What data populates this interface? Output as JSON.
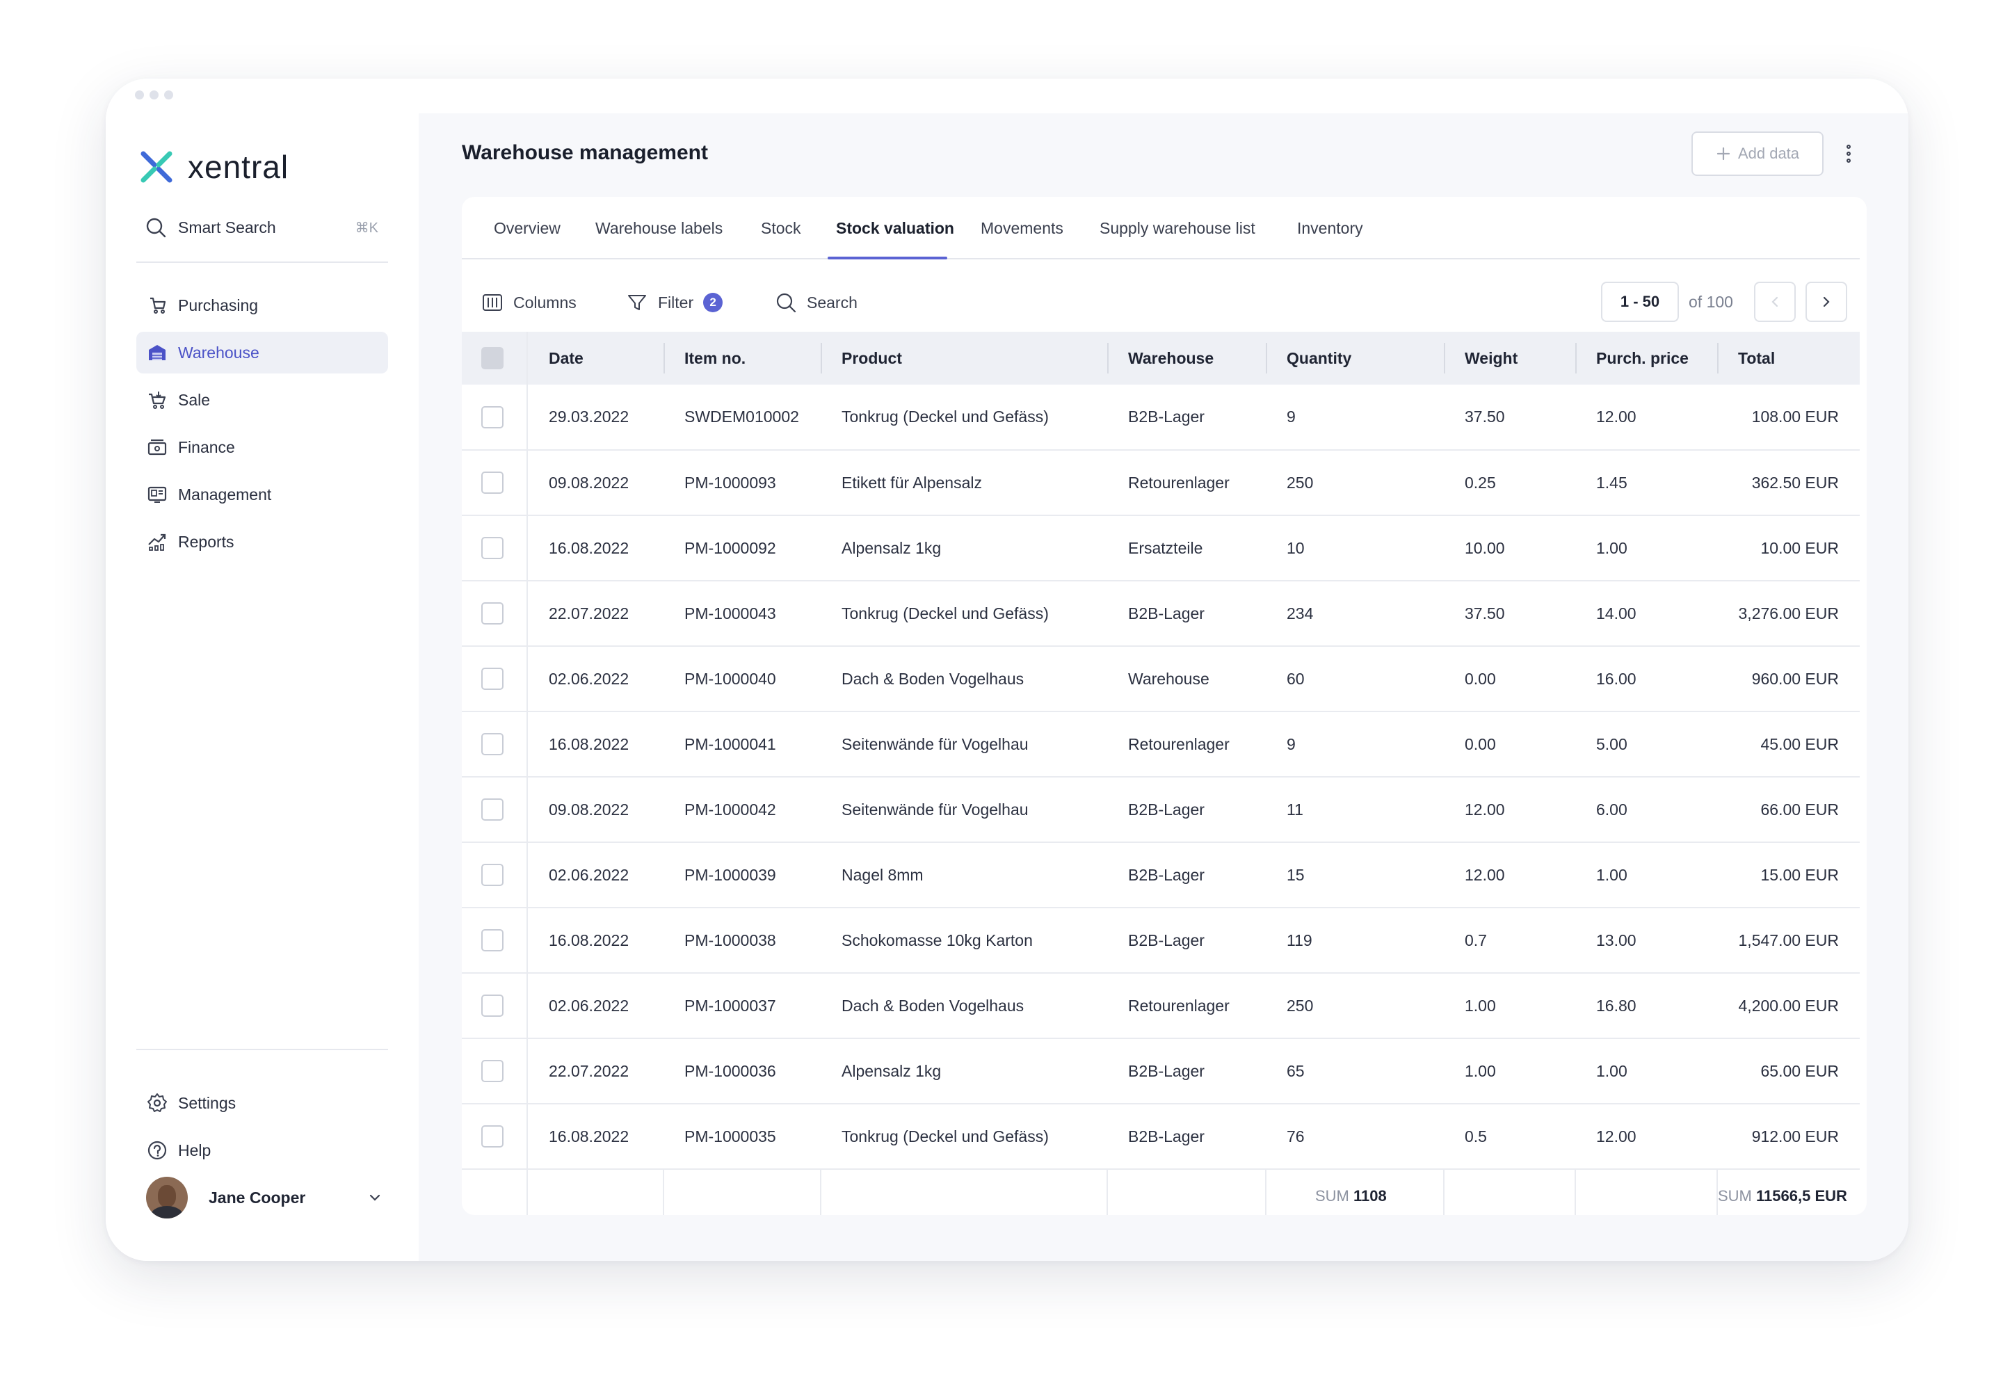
{
  "brand": {
    "name": "xentral"
  },
  "sidebar": {
    "search": {
      "label": "Smart Search",
      "shortcut": "⌘K"
    },
    "items": [
      {
        "label": "Purchasing",
        "icon": "purchasing-icon"
      },
      {
        "label": "Warehouse",
        "icon": "warehouse-icon",
        "active": true
      },
      {
        "label": "Sale",
        "icon": "cart-icon"
      },
      {
        "label": "Finance",
        "icon": "finance-icon"
      },
      {
        "label": "Management",
        "icon": "management-icon"
      },
      {
        "label": "Reports",
        "icon": "reports-icon"
      }
    ],
    "bottom_items": [
      {
        "label": "Settings",
        "icon": "gear-icon"
      },
      {
        "label": "Help",
        "icon": "help-icon"
      }
    ],
    "user": {
      "name": "Jane Cooper"
    }
  },
  "header": {
    "title": "Warehouse management",
    "add_label": "Add data"
  },
  "tabs": [
    {
      "label": "Overview"
    },
    {
      "label": "Warehouse labels"
    },
    {
      "label": "Stock"
    },
    {
      "label": "Stock valuation",
      "active": true
    },
    {
      "label": "Movements"
    },
    {
      "label": "Supply warehouse list"
    },
    {
      "label": "Inventory"
    }
  ],
  "toolbar": {
    "columns_label": "Columns",
    "filter_label": "Filter",
    "filter_count": "2",
    "search_label": "Search",
    "range": "1 - 50",
    "of_total": "of 100"
  },
  "table": {
    "columns": [
      "Date",
      "Item no.",
      "Product",
      "Warehouse",
      "Quantity",
      "Weight",
      "Purch. price",
      "Total"
    ],
    "rows": [
      [
        "29.03.2022",
        "SWDEM010002",
        "Tonkrug (Deckel und Gefäss)",
        "B2B-Lager",
        "9",
        "37.50",
        "12.00",
        "108.00 EUR"
      ],
      [
        "09.08.2022",
        "PM-1000093",
        "Etikett für Alpensalz",
        "Retourenlager",
        "250",
        "0.25",
        "1.45",
        "362.50 EUR"
      ],
      [
        "16.08.2022",
        "PM-1000092",
        "Alpensalz 1kg",
        "Ersatzteile",
        "10",
        "10.00",
        "1.00",
        "10.00 EUR"
      ],
      [
        "22.07.2022",
        "PM-1000043",
        "Tonkrug (Deckel und Gefäss)",
        "B2B-Lager",
        "234",
        "37.50",
        "14.00",
        "3,276.00 EUR"
      ],
      [
        "02.06.2022",
        "PM-1000040",
        "Dach & Boden Vogelhaus",
        "Warehouse",
        "60",
        "0.00",
        "16.00",
        "960.00 EUR"
      ],
      [
        "16.08.2022",
        "PM-1000041",
        "Seitenwände für Vogelhau",
        "Retourenlager",
        "9",
        "0.00",
        "5.00",
        "45.00 EUR"
      ],
      [
        "09.08.2022",
        "PM-1000042",
        "Seitenwände für Vogelhau",
        "B2B-Lager",
        "11",
        "12.00",
        "6.00",
        "66.00 EUR"
      ],
      [
        "02.06.2022",
        "PM-1000039",
        "Nagel 8mm",
        "B2B-Lager",
        "15",
        "12.00",
        "1.00",
        "15.00 EUR"
      ],
      [
        "16.08.2022",
        "PM-1000038",
        "Schokomasse 10kg Karton",
        "B2B-Lager",
        "119",
        "0.7",
        "13.00",
        "1,547.00 EUR"
      ],
      [
        "02.06.2022",
        "PM-1000037",
        "Dach & Boden Vogelhaus",
        "Retourenlager",
        "250",
        "1.00",
        "16.80",
        "4,200.00 EUR"
      ],
      [
        "22.07.2022",
        "PM-1000036",
        "Alpensalz 1kg",
        "B2B-Lager",
        "65",
        "1.00",
        "1.00",
        "65.00 EUR"
      ],
      [
        "16.08.2022",
        "PM-1000035",
        "Tonkrug (Deckel und Gefäss)",
        "B2B-Lager",
        "76",
        "0.5",
        "12.00",
        "912.00 EUR"
      ]
    ],
    "footer": {
      "sum_label": "SUM",
      "quantity_sum": "1108",
      "total_sum": "11566,5 EUR"
    }
  },
  "colors": {
    "accent": "#5b63d3",
    "active_bg": "#eef0f6",
    "header_bg": "#eef0f5"
  }
}
